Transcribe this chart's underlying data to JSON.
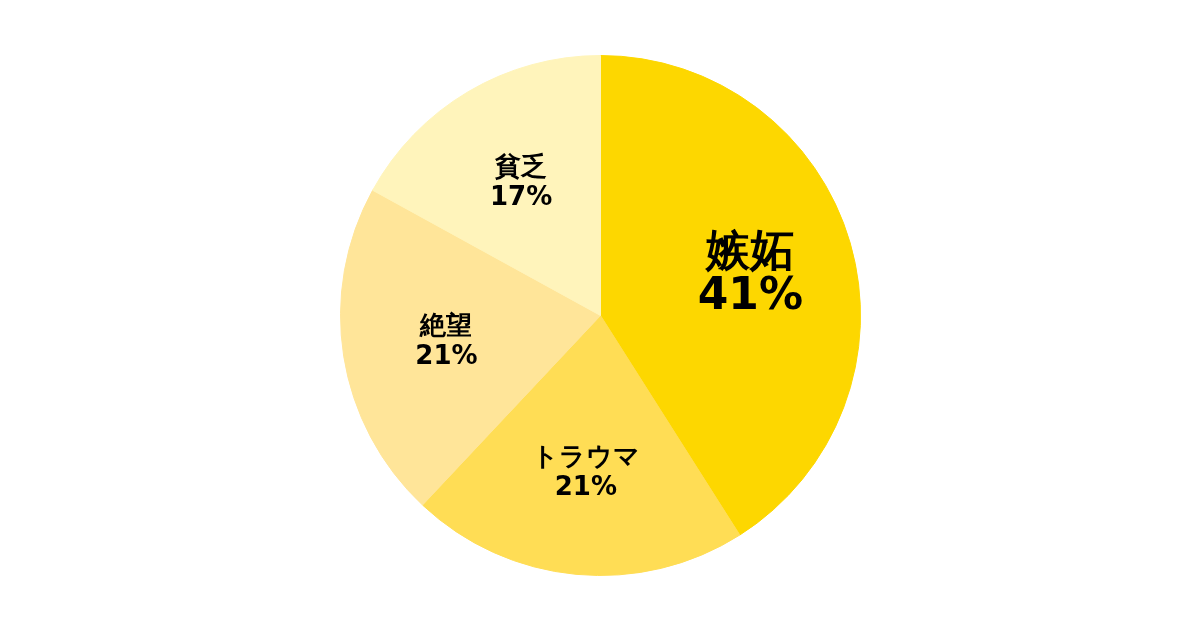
{
  "chart_data": {
    "type": "pie",
    "categories": [
      "嫉妬",
      "トラウマ",
      "絶望",
      "貧乏"
    ],
    "values": [
      41,
      21,
      21,
      17
    ],
    "colors": [
      "#fdd700",
      "#ffdd55",
      "#ffe599",
      "#fff4bb"
    ],
    "value_labels": [
      "41%",
      "21%",
      "21%",
      "17%"
    ]
  }
}
